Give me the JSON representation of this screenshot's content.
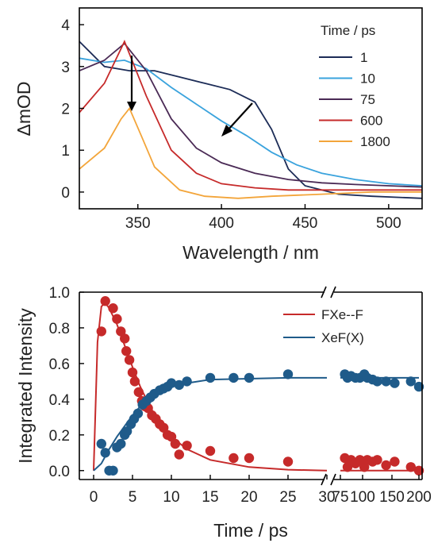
{
  "chart_data": [
    {
      "type": "line",
      "xlabel": "Wavelength / nm",
      "ylabel": "ΔmOD",
      "xlim": [
        315,
        520
      ],
      "ylim": [
        -0.4,
        4.4
      ],
      "x_ticks": [
        350,
        400,
        450,
        500
      ],
      "y_ticks": [
        0,
        1,
        2,
        3,
        4
      ],
      "legend_title": "Time / ps",
      "legend_position": "top-right",
      "legend": [
        {
          "label": "1",
          "color": "#1c2c57"
        },
        {
          "label": "10",
          "color": "#3aa3dd"
        },
        {
          "label": "75",
          "color": "#4a2a55"
        },
        {
          "label": "600",
          "color": "#c62a2a"
        },
        {
          "label": "1800",
          "color": "#f3a53a"
        }
      ],
      "annotations": [
        "downward arrow at the ~342 nm peak (decreasing signal)",
        "diagonal arrow across the ~420 nm band (decay and shift)"
      ],
      "series": [
        {
          "name": "1",
          "color": "#1c2c57",
          "x": [
            315,
            330,
            345,
            360,
            375,
            390,
            405,
            420,
            430,
            440,
            450,
            470,
            490,
            520
          ],
          "y": [
            3.6,
            3.0,
            2.9,
            2.9,
            2.75,
            2.6,
            2.45,
            2.15,
            1.5,
            0.55,
            0.15,
            -0.05,
            -0.1,
            -0.15
          ]
        },
        {
          "name": "10",
          "color": "#3aa3dd",
          "x": [
            315,
            330,
            342,
            355,
            370,
            385,
            400,
            415,
            430,
            445,
            460,
            480,
            500,
            520
          ],
          "y": [
            3.2,
            3.1,
            3.15,
            2.95,
            2.5,
            2.1,
            1.7,
            1.35,
            0.95,
            0.65,
            0.45,
            0.3,
            0.2,
            0.15
          ]
        },
        {
          "name": "75",
          "color": "#4a2a55",
          "x": [
            315,
            330,
            342,
            355,
            370,
            385,
            400,
            420,
            440,
            460,
            480,
            500,
            520
          ],
          "y": [
            2.9,
            3.15,
            3.55,
            2.9,
            1.75,
            1.05,
            0.7,
            0.45,
            0.3,
            0.22,
            0.18,
            0.15,
            0.12
          ]
        },
        {
          "name": "600",
          "color": "#c62a2a",
          "x": [
            315,
            330,
            342,
            355,
            370,
            385,
            400,
            420,
            440,
            460,
            480,
            500,
            520
          ],
          "y": [
            1.9,
            2.6,
            3.6,
            2.3,
            1.0,
            0.45,
            0.2,
            0.1,
            0.05,
            0.05,
            0.05,
            0.05,
            0.05
          ]
        },
        {
          "name": "1800",
          "color": "#f3a53a",
          "x": [
            315,
            330,
            340,
            345,
            352,
            360,
            375,
            390,
            410,
            430,
            460,
            490,
            520
          ],
          "y": [
            0.55,
            1.05,
            1.75,
            2.0,
            1.35,
            0.6,
            0.05,
            -0.1,
            -0.15,
            -0.1,
            -0.05,
            0.0,
            0.0
          ]
        }
      ]
    },
    {
      "type": "scatter",
      "xlabel": "Time / ps",
      "ylabel": "Integrated Intensity",
      "ylim": [
        -0.05,
        1.0
      ],
      "axis_break": "between 30 and 75 ps",
      "x_ticks": [
        "0",
        "5",
        "10",
        "15",
        "20",
        "25",
        "30",
        "75",
        "100",
        "150",
        "200"
      ],
      "y_ticks": [
        "0.0",
        "0.2",
        "0.4",
        "0.6",
        "0.8",
        "1.0"
      ],
      "legend_position": "top-right",
      "series": [
        {
          "name": "FXe--F",
          "color": "#c62a2a",
          "points_x": [
            1.0,
            1.5,
            2.5,
            3.0,
            3.5,
            4.0,
            4.2,
            4.6,
            5.0,
            5.3,
            5.8,
            6.2,
            6.6,
            7.0,
            7.5,
            8.0,
            8.5,
            9.0,
            9.5,
            10.0,
            10.5,
            11.0,
            12.0,
            15.0,
            18.0,
            20.0,
            25.0,
            80,
            83,
            87,
            92,
            97,
            103,
            108,
            117,
            125,
            140,
            155,
            185,
            200
          ],
          "points_y": [
            0.78,
            0.95,
            0.91,
            0.85,
            0.78,
            0.74,
            0.67,
            0.62,
            0.55,
            0.5,
            0.44,
            0.39,
            0.36,
            0.35,
            0.31,
            0.29,
            0.26,
            0.24,
            0.2,
            0.19,
            0.15,
            0.09,
            0.14,
            0.11,
            0.07,
            0.07,
            0.05,
            0.07,
            0.02,
            0.06,
            0.04,
            0.06,
            0.02,
            0.06,
            0.05,
            0.06,
            0.03,
            0.05,
            0.02,
            0.0
          ],
          "fit_x": [
            0.0,
            0.5,
            1.0,
            1.5,
            2.0,
            3.0,
            4.0,
            5.0,
            6.0,
            7.0,
            8.0,
            10.0,
            12.0,
            15.0,
            20.0,
            25.0,
            30.0,
            75,
            100,
            150,
            200
          ],
          "fit_y": [
            0.0,
            0.72,
            0.92,
            0.94,
            0.91,
            0.82,
            0.7,
            0.58,
            0.47,
            0.38,
            0.3,
            0.19,
            0.12,
            0.06,
            0.02,
            0.005,
            0.0,
            0.0,
            0.0,
            0.0,
            0.0
          ]
        },
        {
          "name": "XeF(X)",
          "color": "#1f5b8a",
          "points_x": [
            1.0,
            1.5,
            2.0,
            2.5,
            3.0,
            3.5,
            4.0,
            4.3,
            4.8,
            5.2,
            5.7,
            6.3,
            6.8,
            7.3,
            7.8,
            8.5,
            9.0,
            9.5,
            10.0,
            11.0,
            12.0,
            15.0,
            18.0,
            20.0,
            25.0,
            80,
            83,
            87,
            92,
            97,
            103,
            108,
            117,
            125,
            140,
            155,
            185,
            200
          ],
          "points_y": [
            0.15,
            0.1,
            0.0,
            0.0,
            0.13,
            0.15,
            0.2,
            0.22,
            0.26,
            0.29,
            0.32,
            0.37,
            0.39,
            0.41,
            0.43,
            0.45,
            0.46,
            0.47,
            0.49,
            0.48,
            0.5,
            0.52,
            0.52,
            0.52,
            0.54,
            0.54,
            0.52,
            0.53,
            0.52,
            0.52,
            0.54,
            0.52,
            0.51,
            0.5,
            0.5,
            0.49,
            0.5,
            0.47
          ],
          "fit_x": [
            0.0,
            1.0,
            2.0,
            3.0,
            4.0,
            5.0,
            6.0,
            7.0,
            8.0,
            10.0,
            12.0,
            15.0,
            20.0,
            25.0,
            30.0,
            75,
            100,
            150,
            200
          ],
          "fit_y": [
            0.0,
            0.04,
            0.12,
            0.19,
            0.25,
            0.31,
            0.36,
            0.4,
            0.43,
            0.47,
            0.49,
            0.51,
            0.515,
            0.52,
            0.52,
            0.52,
            0.52,
            0.52,
            0.52
          ]
        }
      ]
    }
  ]
}
